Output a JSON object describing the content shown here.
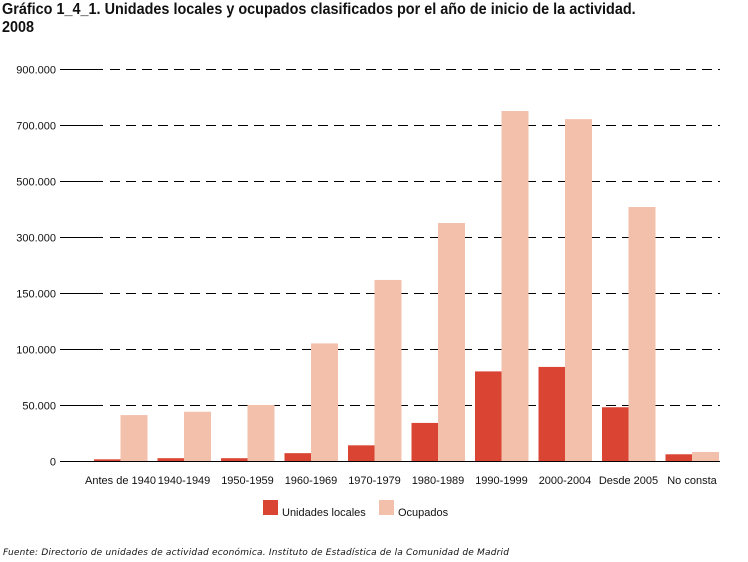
{
  "chart_data": {
    "type": "bar",
    "title": "Gráfico 1_4_1. Unidades locales y ocupados clasificados por el año de inicio de la actividad. 2008",
    "title_line1": "Gráfico 1_4_1. Unidades locales y ocupados clasificados por el año de inicio de la actividad.",
    "title_line2": "2008",
    "xlabel": "",
    "ylabel": "",
    "ylim": [
      0,
      900000
    ],
    "y_scale": "segmented",
    "y_ticks": [
      0,
      50000,
      100000,
      150000,
      300000,
      500000,
      700000,
      900000
    ],
    "y_tick_labels": [
      "0",
      "50.000",
      "100.000",
      "150.000",
      "300.000",
      "500.000",
      "700.000",
      "900.000"
    ],
    "grid": true,
    "grid_style": "dashed",
    "legend_position": "bottom",
    "categories": [
      "Antes de 1940",
      "1940-1949",
      "1950-1959",
      "1960-1969",
      "1970-1979",
      "1980-1989",
      "1990-1999",
      "2000-2004",
      "Desde 2005",
      "No consta"
    ],
    "series": [
      {
        "name": "Unidades locales",
        "color": "#d94433",
        "values": [
          1500,
          2500,
          2500,
          7000,
          14000,
          34000,
          80000,
          84000,
          48000,
          6000
        ]
      },
      {
        "name": "Ocupados",
        "color": "#f2c0ab",
        "values": [
          41000,
          44000,
          50000,
          105000,
          185000,
          350000,
          750000,
          721000,
          407000,
          8000
        ]
      }
    ],
    "source": "Fuente: Directorio de unidades de actividad económica. Instituto de Estadística de la Comunidad de Madrid"
  }
}
